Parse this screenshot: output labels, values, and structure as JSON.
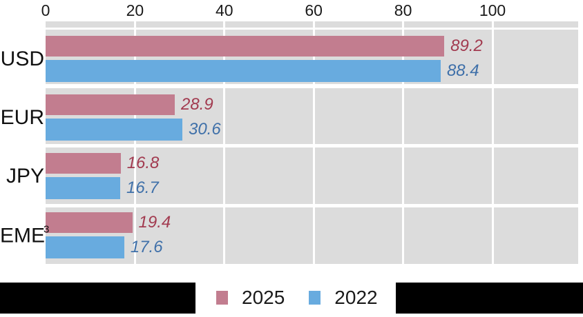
{
  "chart_data": {
    "type": "bar",
    "orientation": "horizontal",
    "title": "",
    "x_axis": {
      "position": "top",
      "ticks": [
        0,
        20,
        40,
        60,
        80,
        100
      ],
      "range": [
        0,
        119
      ],
      "tick_labels": [
        "0",
        "20",
        "40",
        "60",
        "80",
        "100"
      ]
    },
    "categories": [
      {
        "label": "USD",
        "sup": ""
      },
      {
        "label": "EUR",
        "sup": ""
      },
      {
        "label": "JPY",
        "sup": ""
      },
      {
        "label": "EME",
        "sup": "3"
      }
    ],
    "series": [
      {
        "name": "2025",
        "color": "#c27d8f",
        "value_label_color": "#a23b50",
        "values": [
          89.2,
          28.9,
          16.8,
          19.4
        ],
        "value_labels": [
          "89.2",
          "28.9",
          "16.8",
          "19.4"
        ]
      },
      {
        "name": "2022",
        "color": "#68abdf",
        "value_label_color": "#3f70a9",
        "values": [
          88.4,
          30.6,
          16.7,
          17.6
        ],
        "value_labels": [
          "88.4",
          "30.6",
          "16.7",
          "17.6"
        ]
      }
    ],
    "grid": true,
    "plot_background": "#dcdcdc",
    "gridline_color": "#ffffff",
    "legend": {
      "position": "bottom",
      "entries": [
        {
          "label": "2025",
          "color": "#c27d8f"
        },
        {
          "label": "2022",
          "color": "#68abdf"
        }
      ]
    }
  },
  "masks": {
    "color": "#000000"
  }
}
